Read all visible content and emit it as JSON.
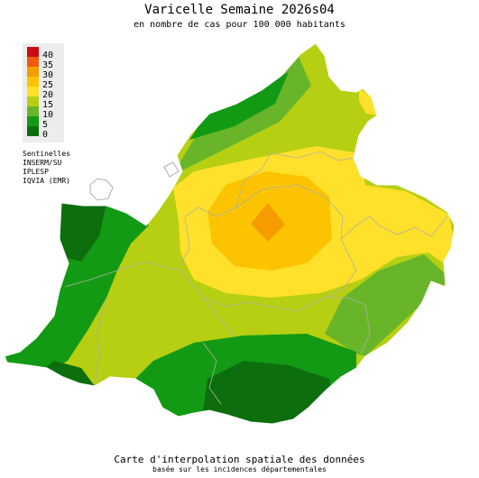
{
  "title": "Varicelle Semaine 2026s04",
  "subtitle": "en nombre de cas pour 100 000 habitants",
  "legend": {
    "items": [
      {
        "label": "40",
        "color": "#cc0a16"
      },
      {
        "label": "35",
        "color": "#ef5a0c"
      },
      {
        "label": "30",
        "color": "#f59d00"
      },
      {
        "label": "25",
        "color": "#fcc400"
      },
      {
        "label": "20",
        "color": "#ffe02a"
      },
      {
        "label": "15",
        "color": "#b6cf12"
      },
      {
        "label": "10",
        "color": "#69b52a"
      },
      {
        "label": "5",
        "color": "#139a14"
      },
      {
        "label": "0",
        "color": "#0d6e0d"
      }
    ]
  },
  "sources": [
    "Sentinelles",
    "INSERM/SU",
    "IPLESP",
    "IQVIA (EMR)"
  ],
  "footer": {
    "line1": "Carte d'interpolation spatiale des données",
    "line2": "basée sur les incidences départementales"
  }
}
